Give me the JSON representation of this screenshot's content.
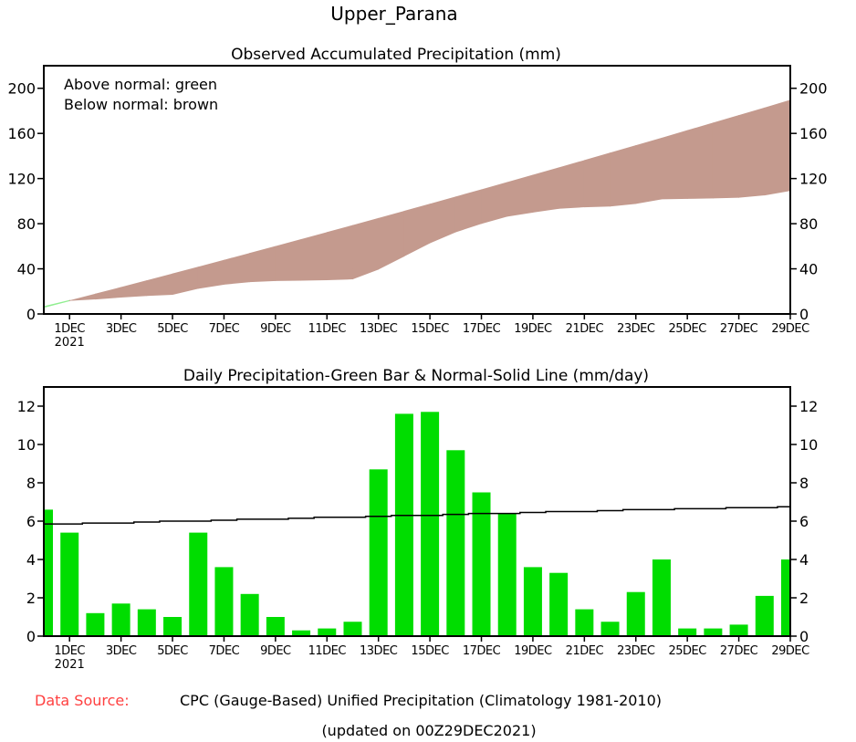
{
  "title": "Upper_Parana",
  "footer": {
    "source_label": "Data Source:",
    "source_text": "CPC (Gauge-Based) Unified Precipitation (Climatology 1981-2010)",
    "updated": "(updated on 00Z29DEC2021)"
  },
  "colors": {
    "above_normal": "#90ee90",
    "below_normal": "#c49a8e",
    "bar": "#00dd00",
    "normal_line": "#000000",
    "source_label": "#ff4040"
  },
  "chart_data": [
    {
      "type": "area",
      "title": "Observed Accumulated Precipitation (mm)",
      "legend": [
        "Above normal: green",
        "Below normal: brown"
      ],
      "legend_placement": "top-left",
      "x": [
        "30NOV",
        "1DEC",
        "2DEC",
        "3DEC",
        "4DEC",
        "5DEC",
        "6DEC",
        "7DEC",
        "8DEC",
        "9DEC",
        "10DEC",
        "11DEC",
        "12DEC",
        "13DEC",
        "14DEC",
        "15DEC",
        "16DEC",
        "17DEC",
        "18DEC",
        "19DEC",
        "20DEC",
        "21DEC",
        "22DEC",
        "23DEC",
        "24DEC",
        "25DEC",
        "26DEC",
        "27DEC",
        "28DEC",
        "29DEC"
      ],
      "xtick_labels": [
        "1DEC",
        "3DEC",
        "5DEC",
        "7DEC",
        "9DEC",
        "11DEC",
        "13DEC",
        "15DEC",
        "17DEC",
        "19DEC",
        "21DEC",
        "23DEC",
        "25DEC",
        "27DEC",
        "29DEC"
      ],
      "xtick_year": "2021",
      "yticks": [
        0,
        40,
        80,
        120,
        160,
        200
      ],
      "ylim": [
        0,
        220
      ],
      "observed": [
        6.6,
        12.0,
        13.2,
        14.9,
        16.3,
        17.3,
        22.7,
        26.3,
        28.5,
        29.5,
        29.8,
        30.2,
        31.0,
        39.7,
        51.3,
        63.0,
        72.7,
        80.2,
        86.6,
        90.2,
        93.5,
        94.9,
        95.6,
        97.9,
        101.9,
        102.3,
        102.7,
        103.3,
        105.4,
        109.4
      ],
      "normal": [
        5.8,
        11.7,
        17.6,
        23.5,
        29.5,
        35.5,
        41.5,
        47.6,
        53.7,
        59.8,
        66.0,
        72.2,
        78.4,
        84.7,
        91.0,
        97.3,
        103.7,
        110.1,
        116.5,
        123.0,
        129.5,
        136.0,
        142.6,
        149.2,
        155.8,
        162.5,
        169.2,
        175.9,
        182.6,
        189.4
      ]
    },
    {
      "type": "bar",
      "title": "Daily Precipitation-Green Bar & Normal-Solid Line (mm/day)",
      "x": [
        "30NOV",
        "1DEC",
        "2DEC",
        "3DEC",
        "4DEC",
        "5DEC",
        "6DEC",
        "7DEC",
        "8DEC",
        "9DEC",
        "10DEC",
        "11DEC",
        "12DEC",
        "13DEC",
        "14DEC",
        "15DEC",
        "16DEC",
        "17DEC",
        "18DEC",
        "19DEC",
        "20DEC",
        "21DEC",
        "22DEC",
        "23DEC",
        "24DEC",
        "25DEC",
        "26DEC",
        "27DEC",
        "28DEC",
        "29DEC"
      ],
      "xtick_labels": [
        "1DEC",
        "3DEC",
        "5DEC",
        "7DEC",
        "9DEC",
        "11DEC",
        "13DEC",
        "15DEC",
        "17DEC",
        "19DEC",
        "21DEC",
        "23DEC",
        "25DEC",
        "27DEC",
        "29DEC"
      ],
      "xtick_year": "2021",
      "yticks": [
        0,
        2,
        4,
        6,
        8,
        10,
        12
      ],
      "ylim": [
        0,
        13
      ],
      "daily": [
        6.6,
        5.4,
        1.2,
        1.7,
        1.4,
        1.0,
        5.4,
        3.6,
        2.2,
        1.0,
        0.3,
        0.4,
        0.75,
        8.7,
        11.6,
        11.7,
        9.7,
        7.5,
        6.4,
        3.6,
        3.3,
        1.4,
        0.75,
        2.3,
        4.0,
        0.4,
        0.4,
        0.6,
        2.1,
        4.0
      ],
      "normal": [
        5.85,
        5.85,
        5.9,
        5.9,
        5.95,
        6.0,
        6.0,
        6.05,
        6.1,
        6.1,
        6.15,
        6.2,
        6.2,
        6.25,
        6.3,
        6.3,
        6.35,
        6.4,
        6.4,
        6.45,
        6.5,
        6.5,
        6.55,
        6.6,
        6.6,
        6.65,
        6.65,
        6.7,
        6.7,
        6.75
      ]
    }
  ]
}
